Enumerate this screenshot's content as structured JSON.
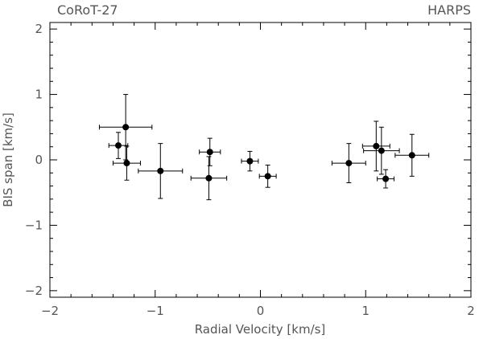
{
  "chart_data": {
    "type": "scatter",
    "title_left": "CoRoT-27",
    "title_right": "HARPS",
    "xlabel": "Radial Velocity [km/s]",
    "ylabel": "BIS span [km/s]",
    "xlim": [
      -2,
      2
    ],
    "ylim": [
      -2.1,
      2.1
    ],
    "x_ticks": [
      -2,
      -1,
      0,
      1,
      2
    ],
    "x_tick_labels": [
      "−2",
      "−1",
      "0",
      "1",
      "2"
    ],
    "y_ticks": [
      -2,
      -1,
      0,
      1,
      2
    ],
    "y_tick_labels": [
      "−2",
      "−1",
      "0",
      "1",
      "2"
    ],
    "grid": false,
    "points": [
      {
        "x": -1.28,
        "y": 0.5,
        "xerr": 0.25,
        "yerr": 0.5
      },
      {
        "x": -1.35,
        "y": 0.22,
        "xerr": 0.09,
        "yerr": 0.2
      },
      {
        "x": -1.27,
        "y": -0.05,
        "xerr": 0.13,
        "yerr": 0.26
      },
      {
        "x": -0.95,
        "y": -0.17,
        "xerr": 0.21,
        "yerr": 0.42
      },
      {
        "x": -0.48,
        "y": 0.12,
        "xerr": 0.1,
        "yerr": 0.21
      },
      {
        "x": -0.49,
        "y": -0.28,
        "xerr": 0.17,
        "yerr": 0.33
      },
      {
        "x": -0.1,
        "y": -0.02,
        "xerr": 0.08,
        "yerr": 0.15
      },
      {
        "x": 0.07,
        "y": -0.25,
        "xerr": 0.08,
        "yerr": 0.17
      },
      {
        "x": 0.84,
        "y": -0.05,
        "xerr": 0.16,
        "yerr": 0.3
      },
      {
        "x": 1.1,
        "y": 0.21,
        "xerr": 0.13,
        "yerr": 0.38
      },
      {
        "x": 1.15,
        "y": 0.14,
        "xerr": 0.17,
        "yerr": 0.36
      },
      {
        "x": 1.19,
        "y": -0.29,
        "xerr": 0.08,
        "yerr": 0.14
      },
      {
        "x": 1.44,
        "y": 0.07,
        "xerr": 0.16,
        "yerr": 0.32
      }
    ]
  }
}
